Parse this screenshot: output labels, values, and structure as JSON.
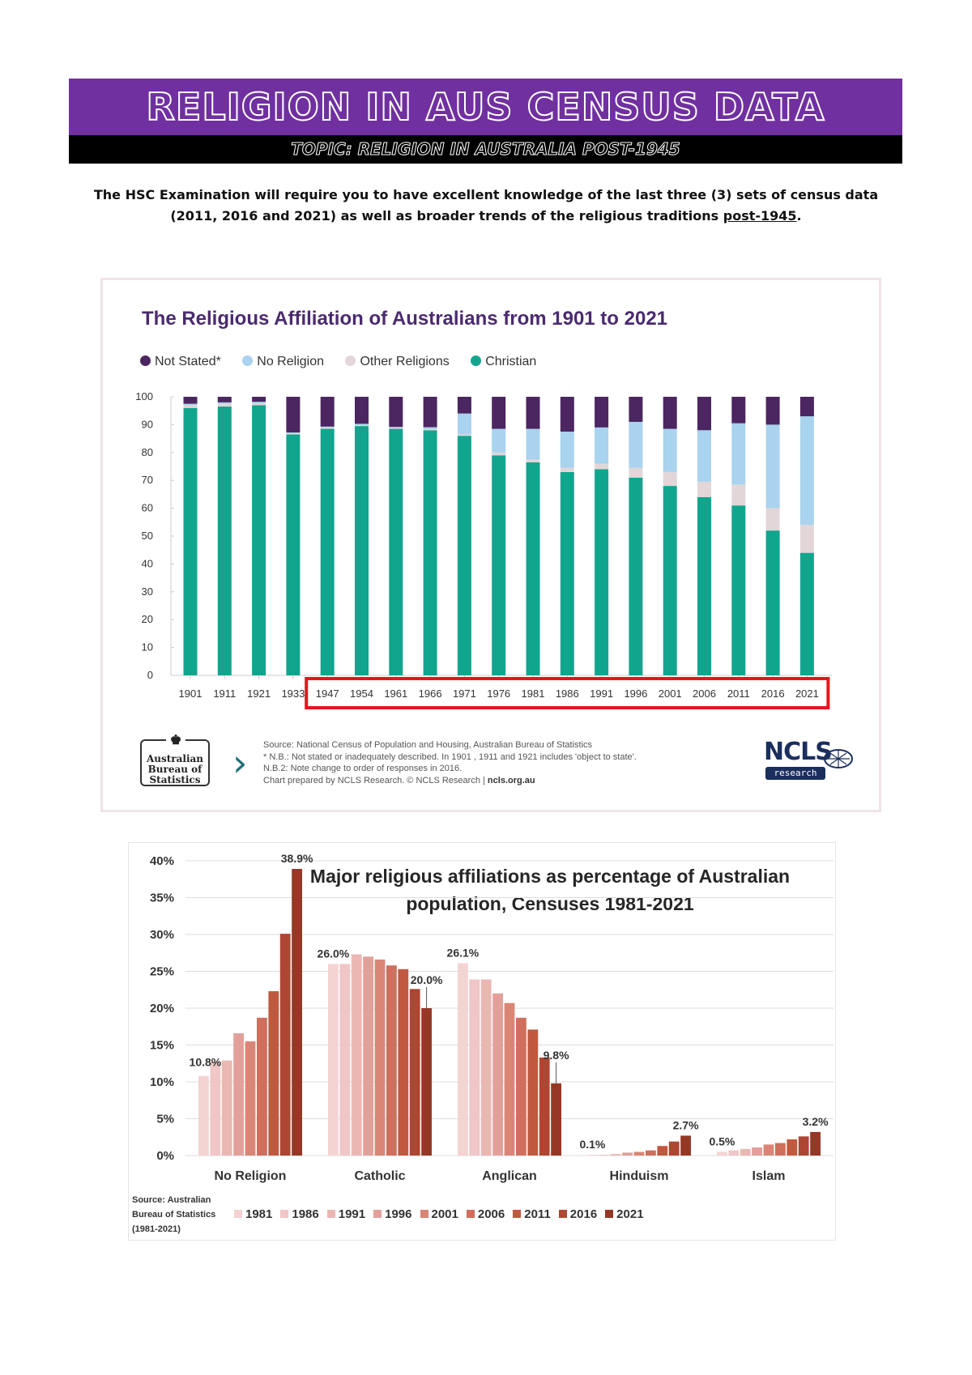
{
  "banner": {
    "title": "RELIGION IN AUS CENSUS DATA",
    "subtitle": "TOPIC: RELIGION IN AUSTRALIA POST-1945"
  },
  "intro": {
    "text_before": "The HSC Examination will require you to have excellent knowledge of the last three (3) sets of census data (2011, 2016 and 2021) as well as broader trends of the religious traditions ",
    "underlined": "post-1945",
    "text_after": "."
  },
  "colors": {
    "purple": "#7030a0",
    "not_stated": "#4b2660",
    "no_religion": "#a9d3ee",
    "other_religions": "#e2d6d8",
    "christian": "#12a58e",
    "highlight_red": "#e8141c"
  },
  "chart1_footer": {
    "abs_logo": "Australian Bureau of Statistics",
    "source_line1": "Source: National Census of Population and Housing, Australian Bureau of Statistics",
    "source_line2": "* N.B.: Not stated or inadequately described. In 1901 , 1911 and 1921 includes 'object to state'.",
    "source_line3": "N.B.2: Note change to order of responses in 2016.",
    "source_line4_a": "Chart prepared by NCLS Research. © NCLS Research  |  ",
    "source_line4_b": "ncls.org.au",
    "ncls_logo": "NCLS",
    "ncls_sub": "research"
  },
  "chart2_footer": {
    "source": [
      "Source: Australian",
      "Bureau of Statistics",
      "(1981-2021)"
    ]
  },
  "chart_data": [
    {
      "type": "bar",
      "stacked": true,
      "title": "The Religious Affiliation of Australians from 1901 to 2021",
      "categories": [
        "1901",
        "1911",
        "1921",
        "1933",
        "1947",
        "1954",
        "1961",
        "1966",
        "1971",
        "1976",
        "1981",
        "1986",
        "1991",
        "1996",
        "2001",
        "2006",
        "2011",
        "2016",
        "2021"
      ],
      "highlight_range": [
        "1947",
        "2021"
      ],
      "series": [
        {
          "name": "Christian",
          "color": "#12a58e",
          "values": [
            96,
            96.5,
            97,
            86.5,
            88.5,
            89.5,
            88.5,
            88,
            86,
            79,
            76.5,
            73,
            74,
            71,
            68,
            64,
            61,
            52,
            44
          ]
        },
        {
          "name": "Other Religions",
          "color": "#e2d6d8",
          "values": [
            1,
            1,
            0.7,
            0.4,
            0.5,
            0.3,
            0.3,
            0.4,
            0.5,
            1,
            1,
            1.5,
            2,
            3.5,
            5,
            5.5,
            7.5,
            8,
            10
          ]
        },
        {
          "name": "No Religion",
          "color": "#a9d3ee",
          "values": [
            0.5,
            0.5,
            0.5,
            0.3,
            0.3,
            0.5,
            0.4,
            0.7,
            7.5,
            8.5,
            11,
            13,
            13,
            16.5,
            15.5,
            18.5,
            22,
            30,
            39
          ]
        },
        {
          "name": "Not Stated*",
          "color": "#4b2660",
          "values": [
            2.5,
            2,
            1.8,
            12.8,
            10.7,
            9.7,
            10.8,
            10.9,
            6,
            11.5,
            11.5,
            12.5,
            11,
            9,
            11.5,
            12,
            9.5,
            10,
            7
          ]
        }
      ],
      "legend_order": [
        "Not Stated*",
        "No Religion",
        "Other Religions",
        "Christian"
      ],
      "yticks": [
        0,
        10,
        20,
        30,
        40,
        50,
        60,
        70,
        80,
        90,
        100
      ],
      "ylim": [
        0,
        100
      ],
      "grid": false
    },
    {
      "type": "bar",
      "grouped": true,
      "title": "Major religious affiliations as percentage of Australian population, Censuses 1981-2021",
      "categories": [
        "No Religion",
        "Catholic",
        "Anglican",
        "Hinduism",
        "Islam"
      ],
      "series": [
        {
          "name": "1981",
          "color": "#f4d3d3",
          "values": [
            10.8,
            26.0,
            26.1,
            0.1,
            0.5
          ]
        },
        {
          "name": "1986",
          "color": "#f0c6c6",
          "values": [
            12.7,
            26.0,
            23.9,
            0.1,
            0.7
          ]
        },
        {
          "name": "1991",
          "color": "#ebb7b3",
          "values": [
            12.9,
            27.3,
            23.9,
            0.2,
            0.9
          ]
        },
        {
          "name": "1996",
          "color": "#e3a09a",
          "values": [
            16.6,
            27.0,
            22.0,
            0.4,
            1.1
          ]
        },
        {
          "name": "2001",
          "color": "#d98676",
          "values": [
            15.5,
            26.6,
            20.7,
            0.5,
            1.5
          ]
        },
        {
          "name": "2006",
          "color": "#cf6f5c",
          "values": [
            18.7,
            25.8,
            18.7,
            0.7,
            1.7
          ]
        },
        {
          "name": "2011",
          "color": "#c0593f",
          "values": [
            22.3,
            25.3,
            17.1,
            1.3,
            2.2
          ]
        },
        {
          "name": "2016",
          "color": "#ad4632",
          "values": [
            30.1,
            22.6,
            13.3,
            1.9,
            2.6
          ]
        },
        {
          "name": "2021",
          "color": "#953826",
          "values": [
            38.9,
            20.0,
            9.8,
            2.7,
            3.2
          ]
        }
      ],
      "data_labels": [
        {
          "text": "38.9%",
          "category": "No Religion",
          "series": "2021",
          "value": 38.9
        },
        {
          "text": "10.8%",
          "category": "No Religion",
          "series": "1981",
          "value": 10.8
        },
        {
          "text": "26.0%",
          "category": "Catholic",
          "series": "1981",
          "value": 26.0
        },
        {
          "text": "20.0%",
          "category": "Catholic",
          "series": "2021",
          "value": 20.0
        },
        {
          "text": "26.1%",
          "category": "Anglican",
          "series": "1981",
          "value": 26.1
        },
        {
          "text": "9.8%",
          "category": "Anglican",
          "series": "2021",
          "value": 9.8
        },
        {
          "text": "0.1%",
          "category": "Hinduism",
          "series": "1981",
          "value": 0.1
        },
        {
          "text": "2.7%",
          "category": "Hinduism",
          "series": "2021",
          "value": 2.7
        },
        {
          "text": "0.5%",
          "category": "Islam",
          "series": "1981",
          "value": 0.5
        },
        {
          "text": "3.2%",
          "category": "Islam",
          "series": "2021",
          "value": 3.2
        }
      ],
      "yticks": [
        "0%",
        "5%",
        "10%",
        "15%",
        "20%",
        "25%",
        "30%",
        "35%",
        "40%"
      ],
      "ylim": [
        0,
        40
      ],
      "grid": true
    }
  ]
}
